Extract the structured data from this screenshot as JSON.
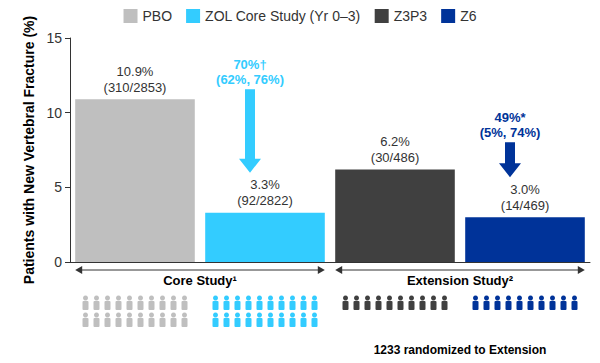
{
  "chart_data": {
    "type": "bar",
    "y_label": "Patients with New Vertebral Fracture (%)",
    "categories": [
      "PBO",
      "ZOL Core Study (Yr 0–3)",
      "Z3P3",
      "Z6"
    ],
    "values": [
      10.9,
      3.3,
      6.2,
      3.0
    ],
    "value_labels": [
      "10.9%",
      "3.3%",
      "6.2%",
      "3.0%"
    ],
    "count_labels": [
      "(310/2853)",
      "(92/2822)",
      "(30/486)",
      "(14/469)"
    ],
    "colors": [
      "#bfbfbf",
      "#33ccff",
      "#404040",
      "#003399"
    ],
    "ylim": [
      0,
      15
    ],
    "yticks": [
      0,
      5,
      10,
      15
    ],
    "grid": false,
    "legend": "top",
    "data_labels": true,
    "tick_labels": "y",
    "reductions": [
      {
        "from": "PBO",
        "to": "ZOL Core Study (Yr 0–3)",
        "label": "70%†\n(62%, 76%)",
        "color": "#33ccff"
      },
      {
        "from": "Z3P3",
        "to": "Z6",
        "label": "49%*\n(5%, 74%)",
        "color": "#003399"
      }
    ],
    "groups": [
      {
        "label": "Core Study¹",
        "members": [
          "PBO",
          "ZOL Core Study (Yr 0–3)"
        ]
      },
      {
        "label": "Extension Study²",
        "members": [
          "Z3P3",
          "Z6"
        ]
      }
    ],
    "note": "1233 randomized to Extension"
  }
}
